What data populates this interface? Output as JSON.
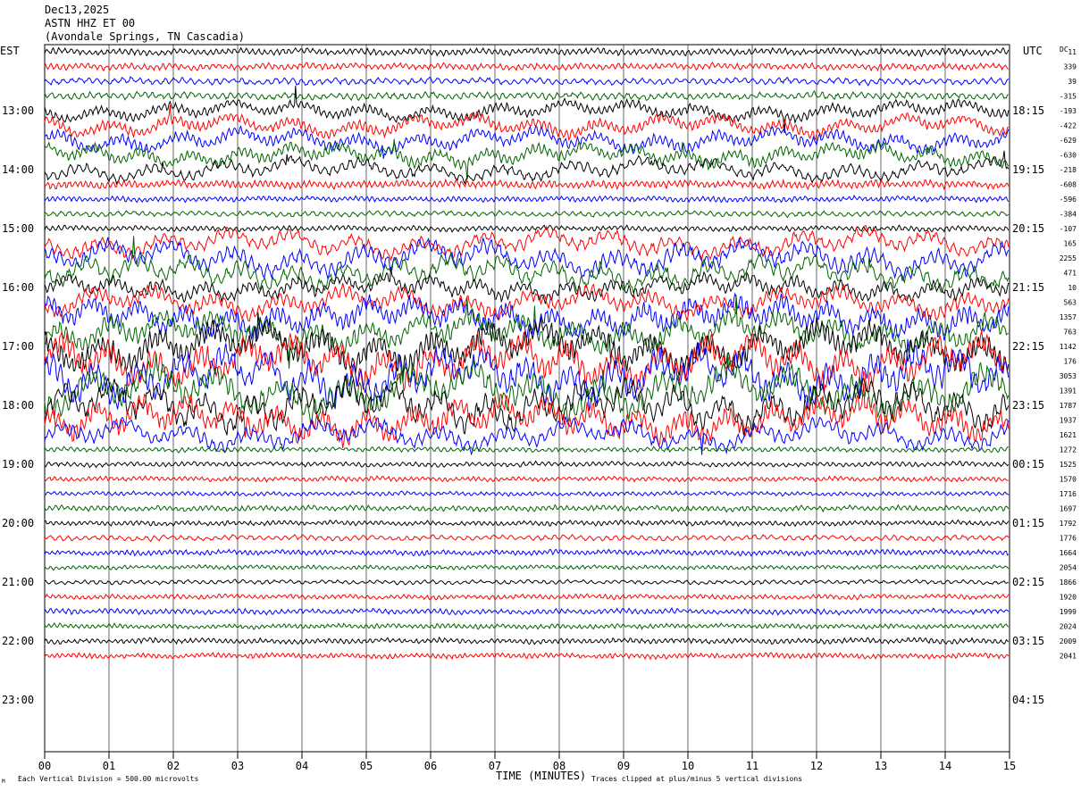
{
  "header": {
    "date": "Dec13,2025",
    "station": "ASTN HHZ ET 00",
    "location": "(Avondale Springs, TN Cascadia)"
  },
  "chart_data": {
    "type": "line",
    "title": "ASTN HHZ ET 00",
    "left_axis_label": "EST",
    "right_axis_label": "UTC",
    "dc_label": "DC",
    "xlabel": "TIME (MINUTES)",
    "x_ticks": [
      "00",
      "01",
      "02",
      "03",
      "04",
      "05",
      "06",
      "07",
      "08",
      "09",
      "10",
      "11",
      "12",
      "13",
      "14",
      "15"
    ],
    "xlim": [
      0,
      15
    ],
    "est_hour_labels": [
      "13:00",
      "14:00",
      "15:00",
      "16:00",
      "17:00",
      "18:00",
      "19:00",
      "20:00",
      "21:00",
      "22:00",
      "23:00"
    ],
    "utc_hour_labels": [
      "18:15",
      "19:15",
      "20:15",
      "21:15",
      "22:15",
      "23:15",
      "00:15",
      "01:15",
      "02:15",
      "03:15",
      "04:15"
    ],
    "trace_colors": [
      "#000000",
      "#ff0000",
      "#0000ff",
      "#006400"
    ],
    "dc_offsets": [
      "11",
      "339",
      "39",
      "-315",
      "-193",
      "-422",
      "-629",
      "-630",
      "-218",
      "-608",
      "-596",
      "-384",
      "-107",
      "165",
      "2255",
      "471",
      "10",
      "563",
      "1357",
      "763",
      "1142",
      "176",
      "3053",
      "1391",
      "1787",
      "1937",
      "1621",
      "1272",
      "1525",
      "1570",
      "1716",
      "1697",
      "1792",
      "1776",
      "1664",
      "2054",
      "1866",
      "1920",
      "1999",
      "2024",
      "2009",
      "2041"
    ],
    "trace_amplitude_levels": [
      1.1,
      1.1,
      1.1,
      1.2,
      1.6,
      1.8,
      1.9,
      1.8,
      1.8,
      1.3,
      0.9,
      0.9,
      0.9,
      2.2,
      2.8,
      2.6,
      2.0,
      2.4,
      3.0,
      3.0,
      3.8,
      4.0,
      4.3,
      4.1,
      3.8,
      3.5,
      2.4,
      0.8,
      0.8,
      0.8,
      0.7,
      0.9,
      0.8,
      0.9,
      0.9,
      0.7,
      0.7,
      0.8,
      0.9,
      0.8,
      0.9,
      0.9
    ],
    "footer_scale": "Each Vertical Division =  500.00 microvolts",
    "footer_clip": "Traces clipped at plus/minus 5 vertical divisions",
    "footer_mark": "M"
  }
}
